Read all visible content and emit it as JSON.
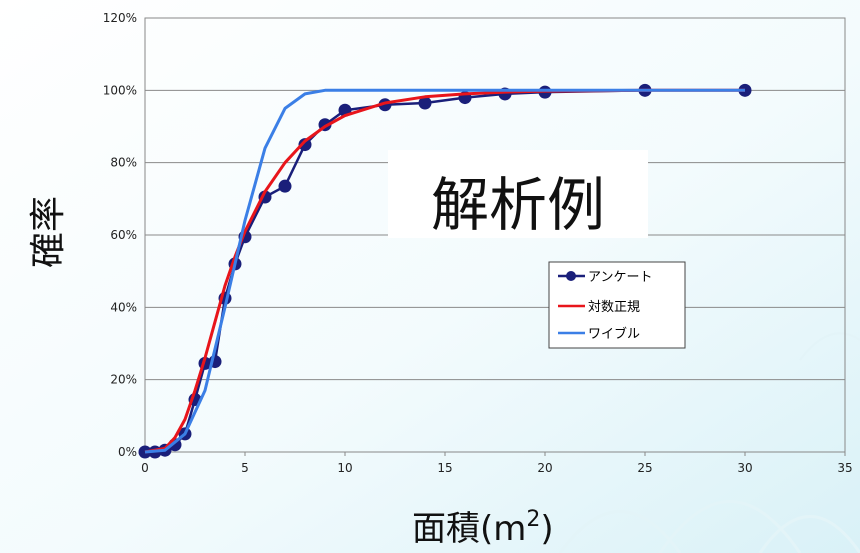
{
  "chart_data": {
    "type": "line",
    "title": "",
    "xlabel": "面積(m",
    "xlabel_sup": "2",
    "xlabel_close": ")",
    "ylabel": "確率",
    "annotation": "解析例",
    "xlim": [
      0,
      35
    ],
    "ylim": [
      0,
      1.2
    ],
    "x_ticks": [
      0,
      5,
      10,
      15,
      20,
      25,
      30,
      35
    ],
    "y_ticks": [
      {
        "value": 0,
        "label": "0%"
      },
      {
        "value": 0.2,
        "label": "20%"
      },
      {
        "value": 0.4,
        "label": "40%"
      },
      {
        "value": 0.6,
        "label": "60%"
      },
      {
        "value": 0.8,
        "label": "80%"
      },
      {
        "value": 1.0,
        "label": "100%"
      },
      {
        "value": 1.2,
        "label": "120%"
      }
    ],
    "grid": true,
    "legend_position": "right-middle",
    "series": [
      {
        "name": "アンケート",
        "color": "#1a1f7a",
        "marker": "circle",
        "x": [
          0,
          0.5,
          1,
          1.5,
          2,
          2.5,
          3,
          3.5,
          4,
          4.5,
          5,
          6,
          7,
          8,
          9,
          10,
          12,
          14,
          16,
          18,
          20,
          25,
          30
        ],
        "y": [
          0.0,
          0.0,
          0.005,
          0.02,
          0.05,
          0.145,
          0.245,
          0.25,
          0.425,
          0.52,
          0.595,
          0.705,
          0.735,
          0.85,
          0.905,
          0.945,
          0.96,
          0.965,
          0.98,
          0.99,
          0.995,
          1.0,
          1.0
        ]
      },
      {
        "name": "対数正規",
        "color": "#e8151b",
        "marker": "none",
        "x": [
          0,
          1,
          1.5,
          2,
          2.5,
          3,
          3.5,
          4,
          4.5,
          5,
          6,
          7,
          8,
          9,
          10,
          12,
          14,
          16,
          18,
          20,
          25,
          30
        ],
        "y": [
          0.0,
          0.01,
          0.04,
          0.09,
          0.17,
          0.26,
          0.36,
          0.46,
          0.54,
          0.61,
          0.72,
          0.8,
          0.86,
          0.9,
          0.93,
          0.965,
          0.982,
          0.99,
          0.995,
          0.998,
          1.0,
          1.0
        ]
      },
      {
        "name": "ワイブル",
        "color": "#3b7fe6",
        "marker": "none",
        "x": [
          0,
          1,
          2,
          3,
          4,
          5,
          6,
          7,
          8,
          9,
          10,
          12,
          15,
          20,
          25,
          30
        ],
        "y": [
          0.0,
          0.005,
          0.05,
          0.17,
          0.4,
          0.64,
          0.84,
          0.95,
          0.99,
          1.0,
          1.0,
          1.0,
          1.0,
          1.0,
          1.0,
          1.0
        ]
      }
    ]
  }
}
